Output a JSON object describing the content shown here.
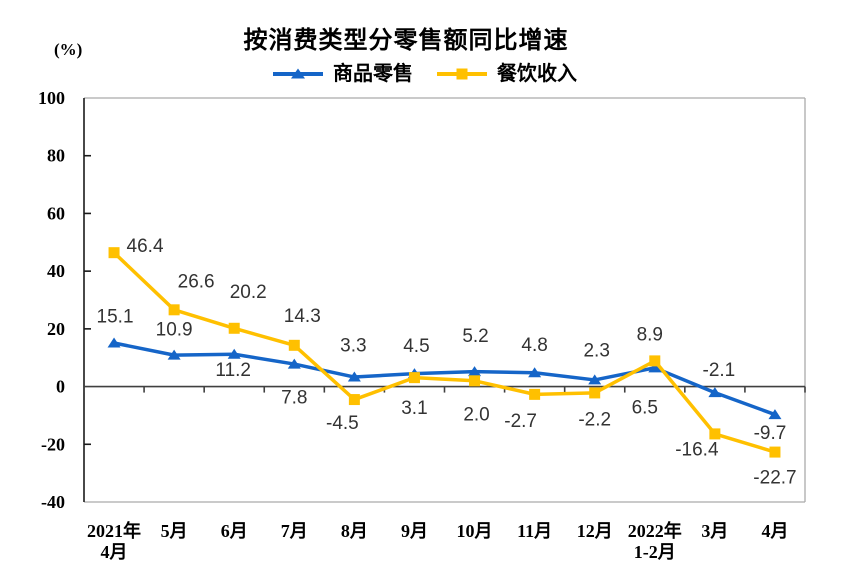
{
  "chart_data": {
    "type": "line",
    "title": "按消费类型分零售额同比增速",
    "unit_label": "(%)",
    "legend_position": "top",
    "grid": false,
    "categories": [
      [
        "2021年",
        "4月"
      ],
      [
        "5月"
      ],
      [
        "6月"
      ],
      [
        "7月"
      ],
      [
        "8月"
      ],
      [
        "9月"
      ],
      [
        "10月"
      ],
      [
        "11月"
      ],
      [
        "12月"
      ],
      [
        "2022年",
        "1-2月"
      ],
      [
        "3月"
      ],
      [
        "4月"
      ]
    ],
    "ylim": [
      -40,
      100
    ],
    "yticks": [
      100,
      80,
      60,
      40,
      20,
      0,
      -20,
      -40
    ],
    "series": [
      {
        "name": "商品零售",
        "key": "goods-retail",
        "color": "#1565C8",
        "marker": "triangle",
        "values": [
          15.1,
          10.9,
          11.2,
          7.8,
          3.3,
          4.5,
          5.2,
          4.8,
          2.3,
          6.5,
          -2.1,
          -9.7
        ],
        "label_offsets": [
          [
            1,
            -26
          ],
          [
            0,
            -25
          ],
          [
            -1,
            16
          ],
          [
            0,
            34
          ],
          [
            -1,
            -31
          ],
          [
            2,
            -27
          ],
          [
            1,
            -35
          ],
          [
            0,
            -27
          ],
          [
            2,
            -29
          ],
          [
            -10,
            40
          ],
          [
            4,
            -22
          ],
          [
            -5,
            19
          ]
        ]
      },
      {
        "name": "餐饮收入",
        "key": "catering-income",
        "color": "#FFC000",
        "marker": "square",
        "values": [
          46.4,
          26.6,
          20.2,
          14.3,
          -4.5,
          3.1,
          2.0,
          -2.7,
          -2.2,
          8.9,
          -16.4,
          -22.7
        ],
        "label_offsets": [
          [
            31,
            -6
          ],
          [
            22,
            -28
          ],
          [
            14,
            -36
          ],
          [
            8,
            -29
          ],
          [
            -12,
            24
          ],
          [
            0,
            31
          ],
          [
            2,
            34
          ],
          [
            -14,
            27
          ],
          [
            0,
            27
          ],
          [
            -5,
            -26
          ],
          [
            -18,
            16
          ],
          [
            0,
            26
          ]
        ]
      }
    ],
    "colors": {
      "axis": "#1a1a1a",
      "zero_line": "#404040",
      "frame": "#ababab",
      "label_text": "#333333"
    }
  }
}
